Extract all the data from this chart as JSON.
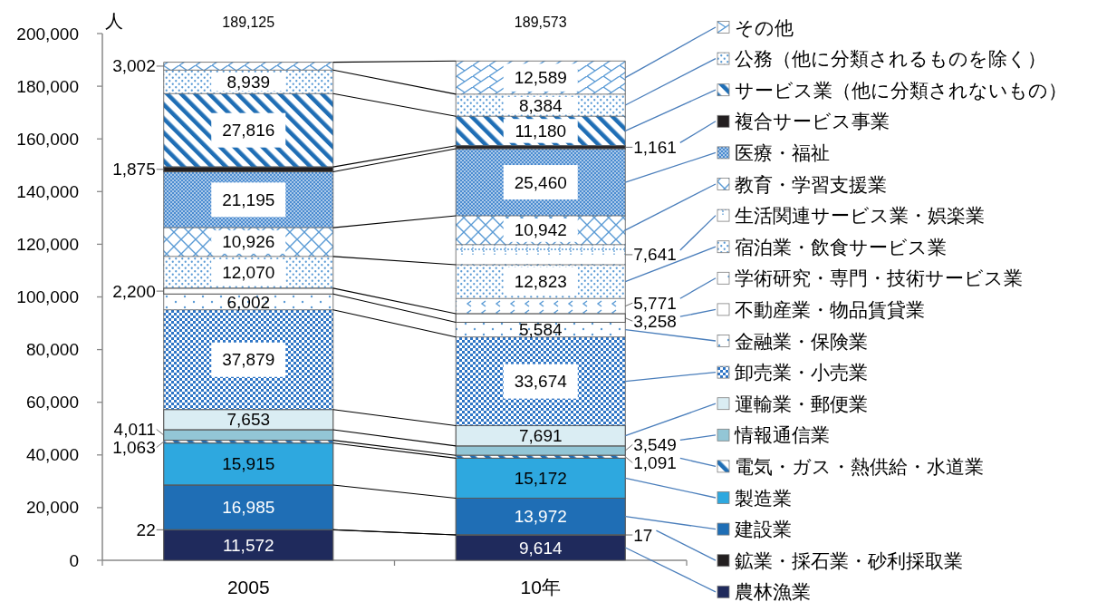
{
  "chart_data": {
    "type": "bar",
    "stacked": true,
    "categories": [
      "2005",
      "10年"
    ],
    "ylabel": "人",
    "ylim": [
      0,
      200000
    ],
    "yticks": [
      0,
      {
        "value": 20000,
        "label": "20,000"
      },
      {
        "value": 40000,
        "label": "40,000"
      },
      {
        "value": 60000,
        "label": "60,000"
      },
      {
        "value": 80000,
        "label": "80,000"
      },
      {
        "value": 100000,
        "label": "100,000"
      },
      {
        "value": 120000,
        "label": "120,000"
      },
      {
        "value": 140000,
        "label": "140,000"
      },
      {
        "value": 160000,
        "label": "160,000"
      },
      {
        "value": 180000,
        "label": "180,000"
      },
      {
        "value": 200000,
        "label": "200,000"
      }
    ],
    "legend": "right",
    "totals": [
      "189,125",
      "189,573"
    ],
    "series": [
      {
        "name": "農林漁業",
        "color": "#1f2a5c",
        "values": [
          11572,
          9614
        ],
        "value_labels": [
          "11,572",
          "9,614"
        ]
      },
      {
        "name": "鉱業・採石業・砂利採取業",
        "color": "#231f20",
        "values": [
          22,
          17
        ],
        "value_labels": [
          "22",
          "17"
        ]
      },
      {
        "name": "建設業",
        "color": "#1f6eb5",
        "values": [
          16985,
          13972
        ],
        "value_labels": [
          "16,985",
          "13,972"
        ]
      },
      {
        "name": "製造業",
        "color": "#2ea8df",
        "values": [
          15915,
          15172
        ],
        "value_labels": [
          "15,915",
          "15,172"
        ]
      },
      {
        "name": "電気・ガス・熱供給・水道業",
        "color": "#1f6eb5",
        "values": [
          1063,
          1091
        ],
        "value_labels": [
          "1,063",
          "1,091"
        ]
      },
      {
        "name": "情報通信業",
        "color": "#93c6d6",
        "values": [
          4011,
          3549
        ],
        "value_labels": [
          "4,011",
          "3,549"
        ]
      },
      {
        "name": "運輸業・郵便業",
        "color": "#daedf3",
        "values": [
          7653,
          7691
        ],
        "value_labels": [
          "7,653",
          "7,691"
        ]
      },
      {
        "name": "卸売業・小売業",
        "color": "#2e75c6",
        "values": [
          37879,
          33674
        ],
        "value_labels": [
          "37,879",
          "33,674"
        ]
      },
      {
        "name": "金融業・保険業",
        "color": "#5b9bd5",
        "values": [
          6002,
          5584
        ],
        "value_labels": [
          "6,002",
          "5,584"
        ]
      },
      {
        "name": "不動産業・物品賃貸業",
        "color": "#ffffff",
        "values": [
          2200,
          3258
        ],
        "value_labels": [
          "2,200",
          "3,258"
        ]
      },
      {
        "name": "学術研究・専門・技術サービス業",
        "color": "#5b9bd5",
        "values": [
          null,
          5771
        ],
        "value_labels": [
          null,
          "5,771"
        ]
      },
      {
        "name": "宿泊業・飲食サービス業",
        "color": "#5b9bd5",
        "values": [
          12070,
          12823
        ],
        "value_labels": [
          "12,070",
          "12,823"
        ]
      },
      {
        "name": "生活関連サービス業・娯楽業",
        "color": "#5b9bd5",
        "values": [
          null,
          7641
        ],
        "value_labels": [
          null,
          "7,641"
        ]
      },
      {
        "name": "教育・学習支援業",
        "color": "#5b9bd5",
        "values": [
          10926,
          10942
        ],
        "value_labels": [
          "10,926",
          "10,942"
        ]
      },
      {
        "name": "医療・福祉",
        "color": "#4a8bd0",
        "values": [
          21195,
          25460
        ],
        "value_labels": [
          "21,195",
          "25,460"
        ]
      },
      {
        "name": "複合サービス事業",
        "color": "#231f20",
        "values": [
          1875,
          1161
        ],
        "value_labels": [
          "1,875",
          "1,161"
        ]
      },
      {
        "name": "サービス業（他に分類されないもの）",
        "color": "#1f6eb5",
        "values": [
          27816,
          11180
        ],
        "value_labels": [
          "27,816",
          "11,180"
        ]
      },
      {
        "name": "公務（他に分類されるものを除く）",
        "color": "#5b9bd5",
        "values": [
          8939,
          8384
        ],
        "value_labels": [
          "8,939",
          "8,384"
        ]
      },
      {
        "name": "その他",
        "color": "#5b9bd5",
        "values": [
          3002,
          12589
        ],
        "value_labels": [
          "3,002",
          "12,589"
        ]
      }
    ]
  }
}
